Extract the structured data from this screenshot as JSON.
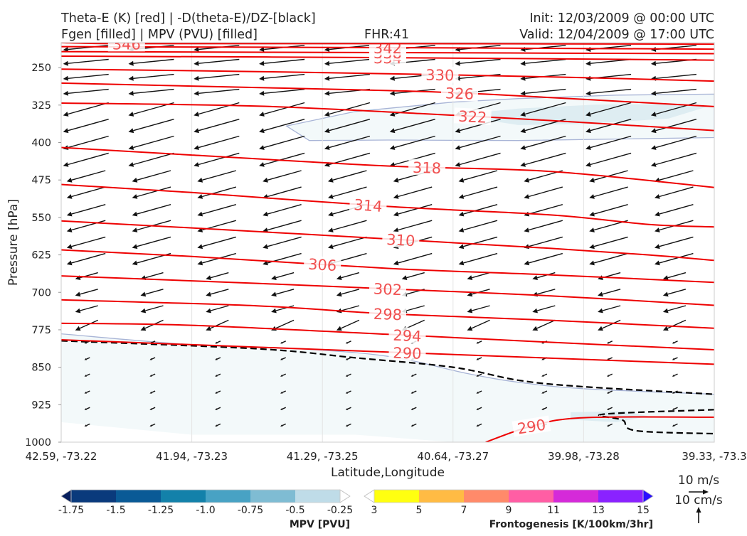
{
  "header": {
    "title_line1": "Theta-E (K) [red] | -D(theta-E)/DZ-[black]",
    "title_line2": "Fgen [filled] | MPV (PVU) [filled]",
    "fhr": "FHR:41",
    "init": "Init: 12/03/2009 @ 00:00 UTC",
    "valid": "Valid: 12/04/2009 @ 17:00 UTC"
  },
  "chart_data": {
    "type": "cross-section",
    "xlabel": "Latitude,Longitude",
    "ylabel": "Pressure [hPa]",
    "x_ticks": [
      "42.59, -73.22",
      "41.94, -73.23",
      "41.29, -73.25",
      "40.64, -73.27",
      "39.98, -73.28",
      "39.33, -73.3"
    ],
    "y_ticks": [
      250,
      325,
      400,
      475,
      550,
      625,
      700,
      775,
      850,
      925,
      1000
    ],
    "ylim": [
      1000,
      200
    ],
    "theta_e_color": "#ee0000",
    "theta_e_label_color": "#f05050",
    "theta_e_contours": [
      {
        "value": 290,
        "label": "290",
        "points": [
          [
            0.65,
            1000
          ],
          [
            0.72,
            968
          ],
          [
            0.8,
            951
          ],
          [
            1.0,
            950
          ]
        ]
      },
      {
        "value": 290,
        "label": "290",
        "points": [
          [
            0,
            795
          ],
          [
            1,
            844
          ]
        ]
      },
      {
        "value": 294,
        "label": "294",
        "points": [
          [
            0,
            762
          ],
          [
            0.2,
            766
          ],
          [
            0.5,
            784
          ],
          [
            0.75,
            800
          ],
          [
            1,
            815
          ]
        ]
      },
      {
        "value": 298,
        "label": "298",
        "points": [
          [
            0,
            715
          ],
          [
            0.3,
            727
          ],
          [
            0.5,
            743
          ],
          [
            0.75,
            756
          ],
          [
            1,
            772
          ]
        ]
      },
      {
        "value": 302,
        "label": "302",
        "points": [
          [
            0,
            667
          ],
          [
            0.3,
            682
          ],
          [
            0.5,
            693
          ],
          [
            0.75,
            707
          ],
          [
            1,
            726
          ]
        ]
      },
      {
        "value": 306,
        "label": "306",
        "points": [
          [
            0,
            615
          ],
          [
            0.2,
            628
          ],
          [
            0.5,
            652
          ],
          [
            0.75,
            665
          ],
          [
            1,
            680
          ]
        ]
      },
      {
        "value": 310,
        "label": "310",
        "points": [
          [
            0,
            557
          ],
          [
            0.2,
            571
          ],
          [
            0.5,
            593
          ],
          [
            0.75,
            612
          ],
          [
            0.9,
            625
          ],
          [
            1,
            636
          ]
        ]
      },
      {
        "value": 314,
        "label": "314",
        "points": [
          [
            0,
            484
          ],
          [
            0.2,
            500
          ],
          [
            0.5,
            528
          ],
          [
            0.75,
            545
          ],
          [
            0.9,
            564
          ],
          [
            1,
            569
          ]
        ]
      },
      {
        "value": 318,
        "label": "318",
        "points": [
          [
            0,
            410
          ],
          [
            0.2,
            425
          ],
          [
            0.5,
            447
          ],
          [
            0.75,
            458
          ],
          [
            1,
            490
          ]
        ]
      },
      {
        "value": 322,
        "label": "322",
        "points": [
          [
            0,
            321
          ],
          [
            0.3,
            327
          ],
          [
            0.55,
            342
          ],
          [
            0.75,
            356
          ],
          [
            1,
            376
          ]
        ]
      },
      {
        "value": 326,
        "label": "326",
        "points": [
          [
            0,
            281
          ],
          [
            0.2,
            287
          ],
          [
            0.5,
            296
          ],
          [
            0.65,
            303
          ],
          [
            1,
            328
          ]
        ]
      },
      {
        "value": 330,
        "label": "330",
        "points": [
          [
            0,
            253
          ],
          [
            0.3,
            258
          ],
          [
            0.58,
            264
          ],
          [
            0.8,
            270
          ],
          [
            1,
            277
          ]
        ]
      },
      {
        "value": 334,
        "label": "334",
        "points": [
          [
            0,
            227
          ],
          [
            0.5,
            230
          ],
          [
            1,
            235
          ]
        ]
      },
      {
        "value": 338,
        "label": "338",
        "points": [
          [
            0,
            218
          ],
          [
            0.5,
            220
          ],
          [
            1,
            222
          ]
        ]
      },
      {
        "value": 342,
        "label": "342",
        "points": [
          [
            0,
            208
          ],
          [
            0.5,
            210
          ],
          [
            1,
            213
          ]
        ]
      },
      {
        "value": 346,
        "label": "346",
        "points": [
          [
            0,
            200
          ],
          [
            0.1,
            202
          ],
          [
            0.5,
            202
          ],
          [
            1,
            203
          ]
        ]
      }
    ],
    "stability_contours": [
      {
        "style": "dashed",
        "points": [
          [
            0,
            797
          ],
          [
            0.3,
            813
          ],
          [
            0.45,
            831
          ],
          [
            0.6,
            850
          ],
          [
            0.7,
            876
          ],
          [
            0.8,
            889
          ],
          [
            1,
            904
          ]
        ]
      },
      {
        "style": "dashed",
        "points": [
          [
            1,
            935
          ],
          [
            0.83,
            944
          ],
          [
            0.86,
            956
          ],
          [
            0.88,
            977
          ],
          [
            1,
            983
          ]
        ]
      }
    ],
    "mpv_filled": [
      {
        "color": "#f3f9fa",
        "points": [
          [
            0,
            783
          ],
          [
            0.2,
            805
          ],
          [
            0.35,
            812
          ],
          [
            0.5,
            828
          ],
          [
            0.62,
            862
          ],
          [
            0.7,
            880
          ],
          [
            0.8,
            893
          ],
          [
            1,
            904
          ],
          [
            1,
            1000
          ],
          [
            0.6,
            1000
          ],
          [
            0.45,
            985
          ],
          [
            0.2,
            985
          ],
          [
            0,
            960
          ]
        ]
      },
      {
        "color": "#f3f9fa",
        "points": [
          [
            0.345,
            367
          ],
          [
            0.45,
            338
          ],
          [
            0.6,
            319
          ],
          [
            0.7,
            312
          ],
          [
            0.85,
            305
          ],
          [
            1,
            303
          ],
          [
            1,
            390
          ],
          [
            0.7,
            396
          ],
          [
            0.5,
            395
          ],
          [
            0.38,
            396
          ]
        ]
      },
      {
        "color": "#deedf2",
        "points": [
          [
            0.6,
            345
          ],
          [
            0.7,
            332
          ],
          [
            0.82,
            324
          ],
          [
            0.95,
            323
          ],
          [
            0.99,
            328
          ],
          [
            0.93,
            352
          ],
          [
            0.8,
            363
          ],
          [
            0.7,
            365
          ]
        ]
      },
      {
        "color": "#deedf2",
        "points": [
          [
            0.78,
            940
          ],
          [
            0.86,
            938
          ],
          [
            0.9,
            948
          ],
          [
            0.85,
            960
          ],
          [
            0.78,
            955
          ]
        ]
      }
    ],
    "wind_vectors_note": "arrows show along-section circulation",
    "colorbars": [
      {
        "label": "MPV [PVU]",
        "ticks": [
          "-1.75",
          "-1.5",
          "-1.25",
          "-1.0",
          "-0.75",
          "-0.5",
          "-0.25"
        ],
        "colors": [
          "#08205e",
          "#0a3a7c",
          "#0a5a96",
          "#1381aa",
          "#48a2c4",
          "#7fbcd3",
          "#bfdce8",
          "#ffffff"
        ]
      },
      {
        "label": "Frontogenesis [K/100km/3hr]",
        "ticks": [
          "3",
          "5",
          "7",
          "9",
          "11",
          "13",
          "15"
        ],
        "colors": [
          "#ffffff",
          "#ffff10",
          "#ffbb44",
          "#ff8a6a",
          "#ff5ea4",
          "#d52ad9",
          "#8a22ff",
          "#2a10ff"
        ]
      }
    ],
    "reference_vectors": {
      "horizontal": "10 m/s",
      "vertical": "10 cm/s"
    }
  }
}
